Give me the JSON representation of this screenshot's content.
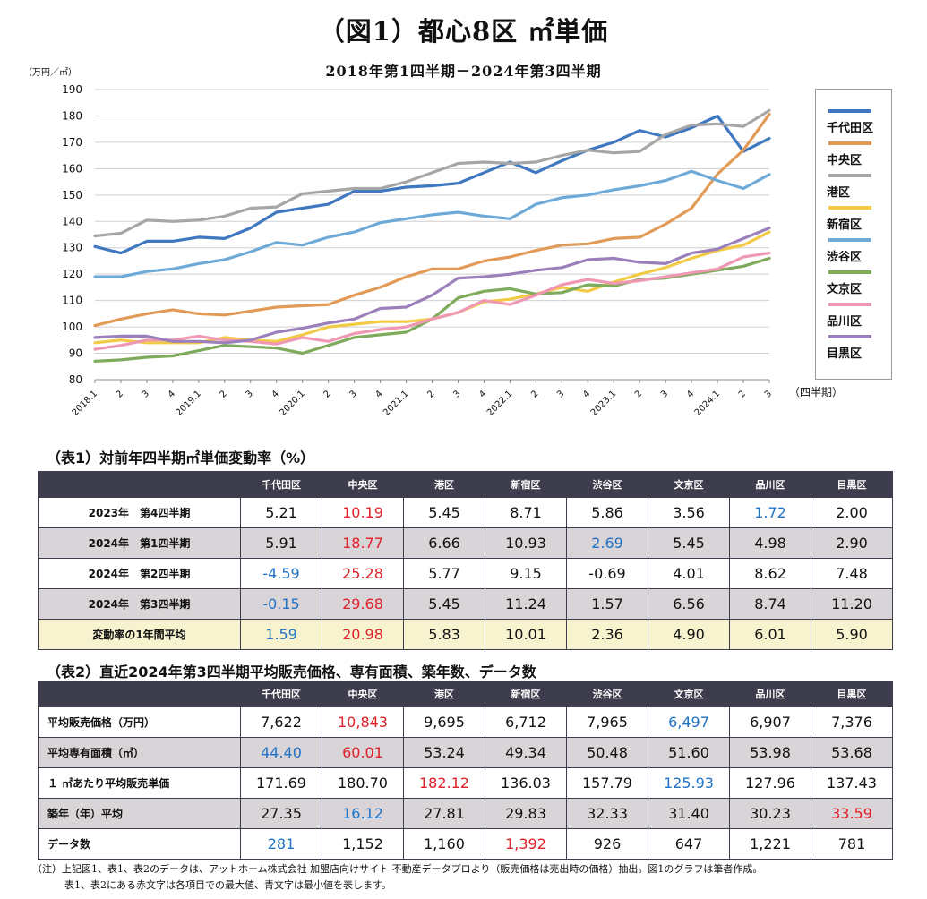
{
  "header": {
    "title": "（図1）都心8区 ㎡単価",
    "subtitle": "2018年第1四半期－2024年第3四半期",
    "y_unit": "（万円／㎡）",
    "x_unit": "（四半期）"
  },
  "chart_data": {
    "type": "line",
    "x": [
      "2018.1",
      "2",
      "3",
      "4",
      "2019.1",
      "2",
      "3",
      "4",
      "2020.1",
      "2",
      "3",
      "4",
      "2021.1",
      "2",
      "3",
      "4",
      "2022.1",
      "2",
      "3",
      "4",
      "2023.1",
      "2",
      "3",
      "4",
      "2024.1",
      "2",
      "3"
    ],
    "ylim": [
      80,
      190
    ],
    "yticks": [
      80,
      90,
      100,
      110,
      120,
      130,
      140,
      150,
      160,
      170,
      180,
      190
    ],
    "grid": true,
    "legend_position": "right",
    "series": [
      {
        "name": "千代田区",
        "color": "#3f78c0",
        "values": [
          130.5,
          128,
          132.5,
          132.5,
          134,
          133.5,
          137.5,
          143.5,
          145,
          146.5,
          151.5,
          151.5,
          153,
          153.5,
          154.5,
          158.5,
          162.5,
          158.5,
          163,
          167,
          170,
          174.5,
          172,
          175.5,
          180,
          166.5,
          171.5
        ]
      },
      {
        "name": "中央区",
        "color": "#e29a57",
        "values": [
          100.5,
          103,
          105,
          106.5,
          105,
          104.5,
          106,
          107.5,
          108,
          108.5,
          112,
          115,
          119,
          122,
          122,
          125,
          126.5,
          129,
          131,
          131.5,
          133.5,
          134,
          139,
          145,
          158,
          167,
          180.7
        ]
      },
      {
        "name": "港区",
        "color": "#a6a6a6",
        "values": [
          134.5,
          135.5,
          140.5,
          140,
          140.5,
          142,
          145,
          145.5,
          150.5,
          151.5,
          152.5,
          152.5,
          155,
          158.5,
          162,
          162.5,
          162,
          162.5,
          165,
          167,
          166,
          166.5,
          173,
          176.5,
          177,
          176,
          182.1
        ]
      },
      {
        "name": "新宿区",
        "color": "#f2ca45",
        "values": [
          94,
          95,
          94,
          94,
          94,
          96,
          95,
          94.5,
          97,
          100,
          101,
          102,
          102,
          103,
          105.5,
          109.5,
          110.5,
          112.5,
          115,
          113.5,
          117,
          120,
          122.5,
          126,
          129,
          131,
          136
        ]
      },
      {
        "name": "渋谷区",
        "color": "#6daad8",
        "values": [
          119,
          119,
          121,
          122,
          124,
          125.5,
          128.5,
          132,
          131,
          134,
          136,
          139.5,
          141,
          142.5,
          143.5,
          142,
          141,
          146.5,
          149,
          150,
          152,
          153.5,
          155.5,
          159,
          155.5,
          152.5,
          157.8
        ]
      },
      {
        "name": "文京区",
        "color": "#7fab5c",
        "values": [
          87,
          87.5,
          88.5,
          89,
          91,
          93,
          92.5,
          92,
          90,
          93,
          96,
          97,
          98,
          103,
          111,
          113.5,
          114.5,
          112.5,
          113,
          116,
          115.5,
          118,
          118.5,
          120,
          121.5,
          123,
          126
        ]
      },
      {
        "name": "品川区",
        "color": "#ef98b3",
        "values": [
          91.5,
          93,
          95,
          95,
          96.5,
          95,
          94.5,
          93.5,
          96,
          94.5,
          97.5,
          99,
          100,
          103,
          105.5,
          110,
          108.5,
          112,
          116,
          118,
          116.5,
          117.5,
          119,
          120.5,
          122,
          126.5,
          128
        ]
      },
      {
        "name": "目黒区",
        "color": "#9b80bb",
        "values": [
          96,
          96.5,
          96.5,
          94.5,
          94.5,
          94,
          95,
          98,
          99.5,
          101.5,
          103,
          107,
          107.5,
          112,
          118.5,
          119,
          120,
          121.5,
          122.5,
          125.5,
          126,
          124.5,
          124,
          128,
          129.5,
          133.5,
          137.5
        ]
      }
    ]
  },
  "table1": {
    "heading": "（表1）対前年四半期㎡単価変動率（%）",
    "columns": [
      "千代田区",
      "中央区",
      "港区",
      "新宿区",
      "渋谷区",
      "文京区",
      "品川区",
      "目黒区"
    ],
    "rows": [
      {
        "label": "2023年　第4四半期",
        "values": [
          "5.21",
          "10.19",
          "5.45",
          "8.71",
          "5.86",
          "3.56",
          "1.72",
          "2.00"
        ],
        "colors": [
          "",
          "red",
          "",
          "",
          "",
          "",
          "blue",
          ""
        ]
      },
      {
        "label": "2024年　第1四半期",
        "values": [
          "5.91",
          "18.77",
          "6.66",
          "10.93",
          "2.69",
          "5.45",
          "4.98",
          "2.90"
        ],
        "colors": [
          "",
          "red",
          "",
          "",
          "blue",
          "",
          "",
          ""
        ]
      },
      {
        "label": "2024年　第2四半期",
        "values": [
          "-4.59",
          "25.28",
          "5.77",
          "9.15",
          "-0.69",
          "4.01",
          "8.62",
          "7.48"
        ],
        "colors": [
          "blue",
          "red",
          "",
          "",
          "",
          "",
          "",
          ""
        ]
      },
      {
        "label": "2024年　第3四半期",
        "values": [
          "-0.15",
          "29.68",
          "5.45",
          "11.24",
          "1.57",
          "6.56",
          "8.74",
          "11.20"
        ],
        "colors": [
          "blue",
          "red",
          "",
          "",
          "",
          "",
          "",
          ""
        ]
      },
      {
        "label": "変動率の1年間平均",
        "values": [
          "1.59",
          "20.98",
          "5.83",
          "10.01",
          "2.36",
          "4.90",
          "6.01",
          "5.90"
        ],
        "colors": [
          "blue",
          "red",
          "",
          "",
          "",
          "",
          "",
          ""
        ]
      }
    ]
  },
  "table2": {
    "heading": "（表2）直近2024年第3四半期平均販売価格、専有面積、築年数、データ数",
    "columns": [
      "千代田区",
      "中央区",
      "港区",
      "新宿区",
      "渋谷区",
      "文京区",
      "品川区",
      "目黒区"
    ],
    "rows": [
      {
        "label": "平均販売価格（万円）",
        "values": [
          "7,622",
          "10,843",
          "9,695",
          "6,712",
          "7,965",
          "6,497",
          "6,907",
          "7,376"
        ],
        "colors": [
          "",
          "red",
          "",
          "",
          "",
          "blue",
          "",
          ""
        ]
      },
      {
        "label": "平均専有面積（㎡）",
        "values": [
          "44.40",
          "60.01",
          "53.24",
          "49.34",
          "50.48",
          "51.60",
          "53.98",
          "53.68"
        ],
        "colors": [
          "blue",
          "red",
          "",
          "",
          "",
          "",
          "",
          ""
        ]
      },
      {
        "label": "１ ㎡あたり平均販売単価",
        "values": [
          "171.69",
          "180.70",
          "182.12",
          "136.03",
          "157.79",
          "125.93",
          "127.96",
          "137.43"
        ],
        "colors": [
          "",
          "",
          "red",
          "",
          "",
          "blue",
          "",
          ""
        ]
      },
      {
        "label": "築年（年）平均",
        "values": [
          "27.35",
          "16.12",
          "27.81",
          "29.83",
          "32.33",
          "31.40",
          "30.23",
          "33.59"
        ],
        "colors": [
          "",
          "blue",
          "",
          "",
          "",
          "",
          "",
          "red"
        ]
      },
      {
        "label": "データ数",
        "values": [
          "281",
          "1,152",
          "1,160",
          "1,392",
          "926",
          "647",
          "1,221",
          "781"
        ],
        "colors": [
          "blue",
          "",
          "",
          "red",
          "",
          "",
          "",
          ""
        ]
      }
    ]
  },
  "notes": {
    "line1": "（注）上記図1、表1、表2のデータは、アットホーム株式会社 加盟店向けサイト 不動産データプロより（販売価格は売出時の価格）抽出。図1のグラフは筆者作成。",
    "line2": "表1、表2にある赤文字は各項目での最大値、青文字は最小値を表します。"
  }
}
